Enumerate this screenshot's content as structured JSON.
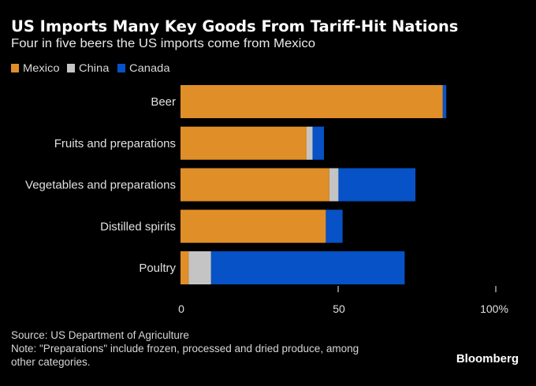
{
  "header": {
    "title": "US Imports Many Key Goods From Tariff-Hit Nations",
    "subtitle": "Four in five beers the US imports come from Mexico"
  },
  "footer": {
    "source": "Source: US Department of Agriculture",
    "note_line1": "Note: \"Preparations\" include frozen, processed and dried produce, among",
    "note_line2": "other categories.",
    "brand": "Bloomberg"
  },
  "chart_data": {
    "type": "bar",
    "orientation": "horizontal",
    "stacked": true,
    "title": "US Imports Many Key Goods From Tariff-Hit Nations",
    "subtitle": "Four in five beers the US imports come from Mexico",
    "categories": [
      "Beer",
      "Fruits and preparations",
      "Vegetables and preparations",
      "Distilled spirits",
      "Poultry"
    ],
    "series": [
      {
        "name": "Mexico",
        "color": "#e08e27",
        "values": [
          83.2,
          40.0,
          47.2,
          46.1,
          2.6
        ]
      },
      {
        "name": "China",
        "color": "#c4c4c4",
        "values": [
          0.0,
          1.9,
          2.9,
          0.0,
          7.1
        ]
      },
      {
        "name": "Canada",
        "color": "#0652c6",
        "values": [
          1.1,
          3.6,
          24.4,
          5.3,
          61.4
        ]
      }
    ],
    "xlabel": "",
    "ylabel": "",
    "xlim": [
      0,
      100
    ],
    "xticks": [
      {
        "value": 0,
        "label": "0"
      },
      {
        "value": 50,
        "label": "50"
      },
      {
        "value": 100,
        "label": "100%"
      }
    ],
    "grid": false,
    "legend_position": "top-left"
  }
}
